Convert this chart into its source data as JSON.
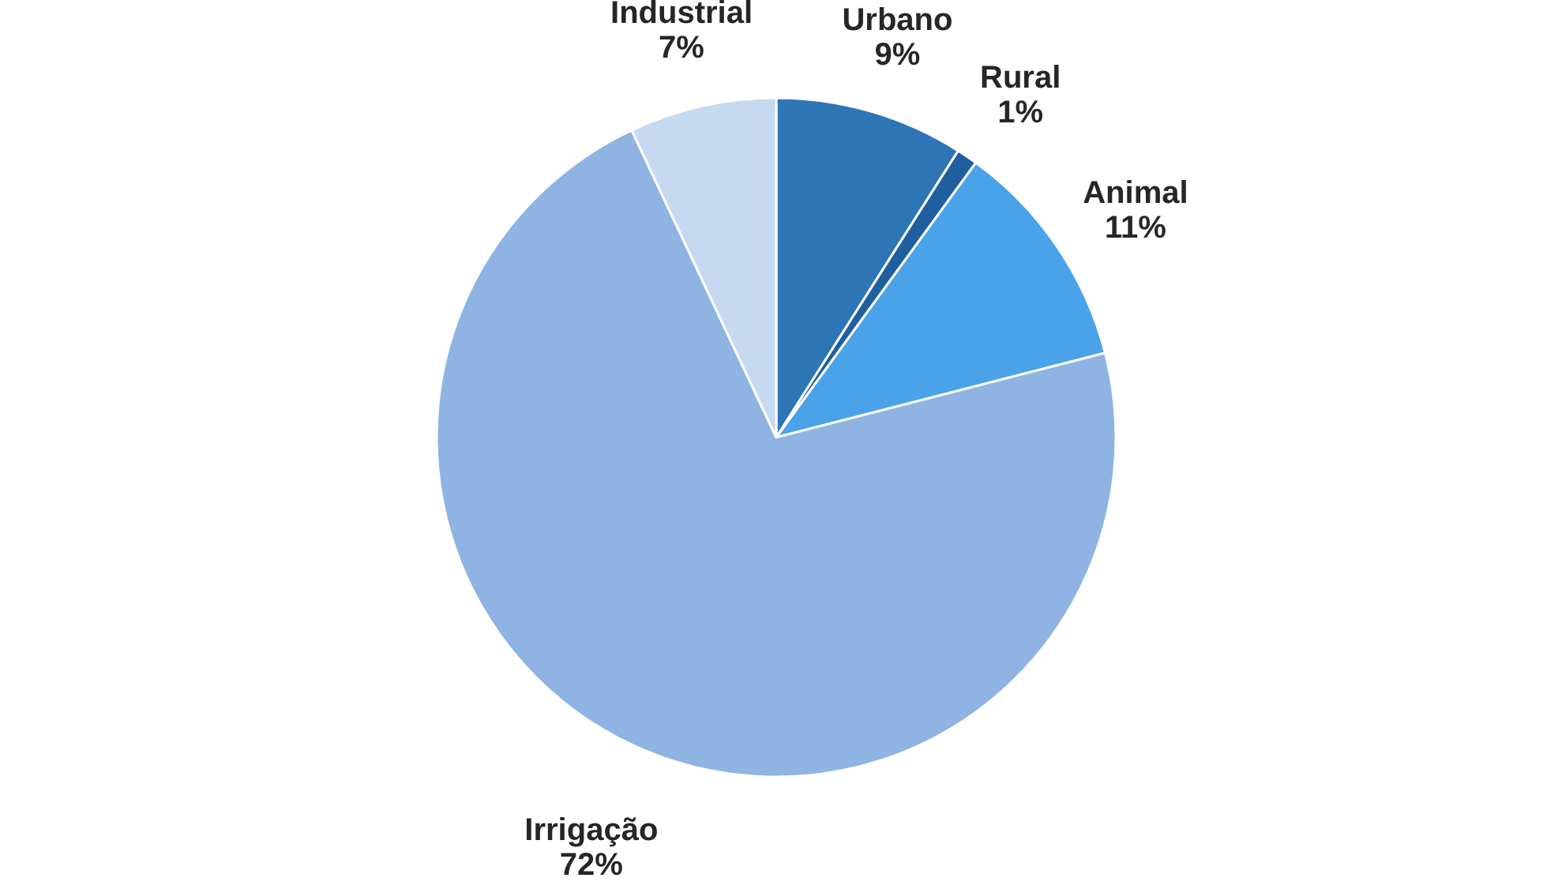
{
  "chart_data": {
    "type": "pie",
    "categories": [
      "Urbano",
      "Rural",
      "Animal",
      "Irrigação",
      "Industrial"
    ],
    "values": [
      9,
      1,
      11,
      72,
      7
    ],
    "value_labels": [
      "9%",
      "1%",
      "11%",
      "72%",
      "7%"
    ],
    "colors": [
      "#2e75b6",
      "#1f5f9f",
      "#4aa3e8",
      "#8fb4e3",
      "#c5d9f1"
    ],
    "legend": false
  }
}
